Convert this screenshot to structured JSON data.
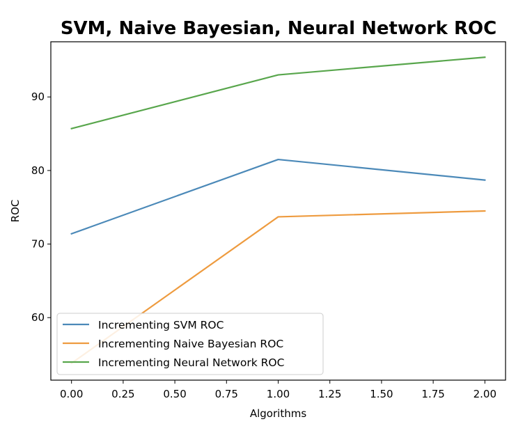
{
  "chart_data": {
    "type": "line",
    "title": "SVM, Naive Bayesian, Neural Network ROC",
    "xlabel": "Algorithms",
    "ylabel": "ROC",
    "x": [
      0,
      1,
      2
    ],
    "xlim": [
      -0.1,
      2.1
    ],
    "ylim": [
      51.5,
      97.5
    ],
    "xticks": [
      0.0,
      0.25,
      0.5,
      0.75,
      1.0,
      1.25,
      1.5,
      1.75,
      2.0
    ],
    "xtick_labels": [
      "0.00",
      "0.25",
      "0.50",
      "0.75",
      "1.00",
      "1.25",
      "1.50",
      "1.75",
      "2.00"
    ],
    "yticks": [
      60,
      70,
      80,
      90
    ],
    "ytick_labels": [
      "60",
      "70",
      "80",
      "90"
    ],
    "grid": false,
    "legend_position": "lower-left",
    "series": [
      {
        "name": "Incrementing SVM ROC",
        "color": "#4b89b8",
        "values": [
          71.4,
          81.5,
          78.7
        ]
      },
      {
        "name": "Incrementing Naive Bayesian ROC",
        "color": "#ee9b3f",
        "values": [
          53.8,
          73.7,
          74.5
        ]
      },
      {
        "name": "Incrementing Neural Network ROC",
        "color": "#58a64c",
        "values": [
          85.7,
          93.0,
          95.4
        ]
      }
    ]
  }
}
